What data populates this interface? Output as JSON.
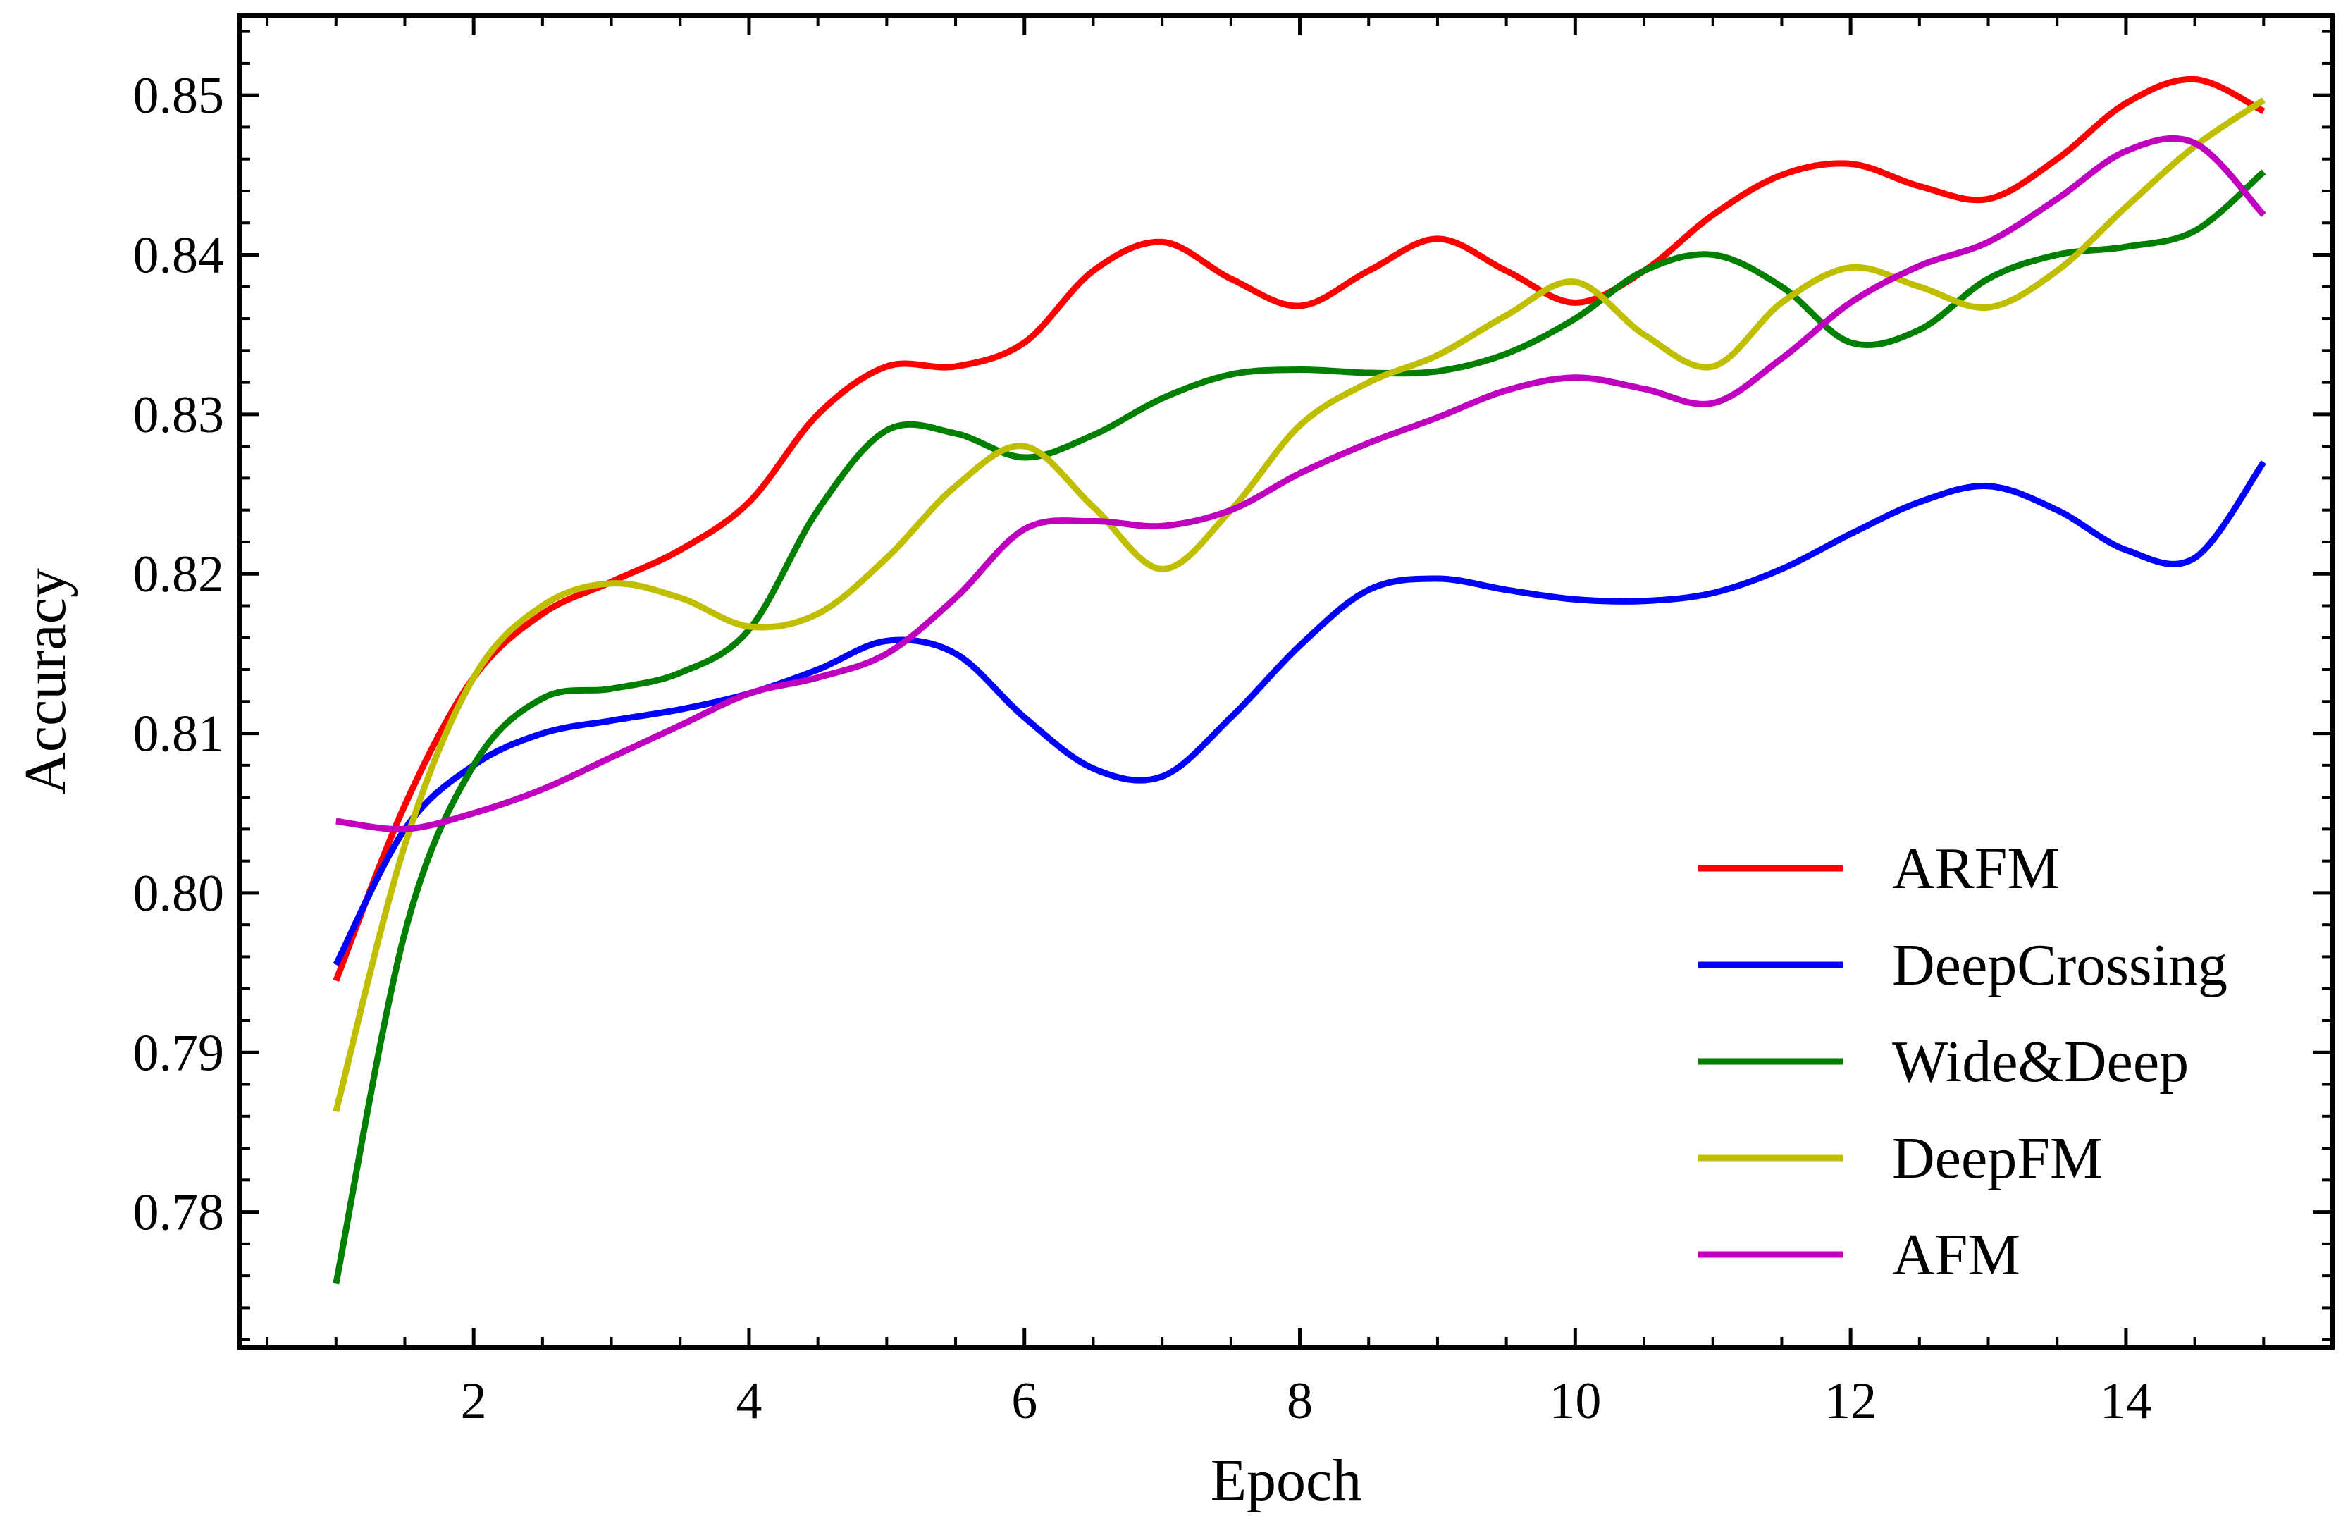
{
  "chart_data": {
    "type": "line",
    "title": "",
    "xlabel": "Epoch",
    "ylabel": "Accuracy",
    "xlim": [
      0.3,
      15.5
    ],
    "ylim": [
      0.7715,
      0.855
    ],
    "xticks": [
      2,
      4,
      6,
      8,
      10,
      12,
      14
    ],
    "xtick_labels": [
      "2",
      "4",
      "6",
      "8",
      "10",
      "12",
      "14"
    ],
    "yticks": [
      0.78,
      0.79,
      0.8,
      0.81,
      0.82,
      0.83,
      0.84,
      0.85
    ],
    "ytick_labels": [
      "0.78",
      "0.79",
      "0.80",
      "0.81",
      "0.82",
      "0.83",
      "0.84",
      "0.85"
    ],
    "grid": false,
    "legend_position": "bottom-right",
    "x": [
      1,
      1.5,
      2,
      2.5,
      3,
      3.5,
      4,
      4.5,
      5,
      5.5,
      6,
      6.5,
      7,
      7.5,
      8,
      8.5,
      9,
      9.5,
      10,
      10.5,
      11,
      11.5,
      12,
      12.5,
      13,
      13.5,
      14,
      14.5,
      15
    ],
    "series": [
      {
        "name": "ARFM",
        "color": "#ff0000",
        "values": [
          0.7945,
          0.8055,
          0.8135,
          0.8175,
          0.8195,
          0.8215,
          0.8245,
          0.83,
          0.833,
          0.833,
          0.8345,
          0.839,
          0.8408,
          0.8385,
          0.8368,
          0.839,
          0.841,
          0.839,
          0.837,
          0.839,
          0.8425,
          0.845,
          0.8457,
          0.8443,
          0.8435,
          0.846,
          0.8495,
          0.851,
          0.849
        ]
      },
      {
        "name": "DeepCrossing",
        "color": "#0000ff",
        "values": [
          0.7955,
          0.804,
          0.808,
          0.81,
          0.8108,
          0.8115,
          0.8125,
          0.814,
          0.8158,
          0.815,
          0.811,
          0.8078,
          0.8073,
          0.811,
          0.8155,
          0.819,
          0.8197,
          0.819,
          0.8184,
          0.8183,
          0.8188,
          0.8203,
          0.8225,
          0.8245,
          0.8255,
          0.824,
          0.8215,
          0.821,
          0.827
        ]
      },
      {
        "name": "Wide&Deep",
        "color": "#007f00",
        "values": [
          0.7755,
          0.7975,
          0.808,
          0.8122,
          0.8128,
          0.8138,
          0.8165,
          0.824,
          0.829,
          0.8288,
          0.8273,
          0.8287,
          0.831,
          0.8325,
          0.8328,
          0.8326,
          0.8327,
          0.8338,
          0.836,
          0.839,
          0.84,
          0.838,
          0.8345,
          0.8353,
          0.8385,
          0.84,
          0.8405,
          0.8415,
          0.8452
        ]
      },
      {
        "name": "DeepFM",
        "color": "#bfbf00",
        "values": [
          0.7863,
          0.803,
          0.8135,
          0.818,
          0.8194,
          0.8185,
          0.8167,
          0.8175,
          0.821,
          0.8255,
          0.828,
          0.8242,
          0.8203,
          0.824,
          0.8293,
          0.832,
          0.8337,
          0.8362,
          0.8383,
          0.835,
          0.833,
          0.837,
          0.8392,
          0.838,
          0.8367,
          0.839,
          0.843,
          0.8468,
          0.8497
        ]
      },
      {
        "name": "AFM",
        "color": "#bf00bf",
        "values": [
          0.8045,
          0.804,
          0.805,
          0.8065,
          0.8085,
          0.8105,
          0.8125,
          0.8135,
          0.815,
          0.8185,
          0.8228,
          0.8233,
          0.823,
          0.824,
          0.8263,
          0.8282,
          0.8298,
          0.8315,
          0.8323,
          0.8316,
          0.8307,
          0.8335,
          0.837,
          0.8393,
          0.8408,
          0.8435,
          0.8465,
          0.847,
          0.8425
        ]
      }
    ]
  }
}
